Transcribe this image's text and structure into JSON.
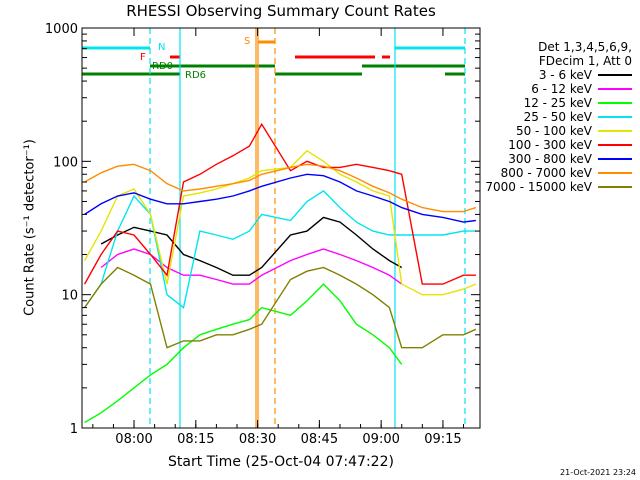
{
  "chart_data": {
    "type": "line",
    "title": "RHESSI Observing Summary Count Rates",
    "xlabel": "Start Time (25-Oct-04 07:47:22)",
    "ylabel": "Count Rate (s⁻¹ detector⁻¹)",
    "y_scale": "log",
    "ylim": [
      1,
      1000
    ],
    "xlim": [
      "07:47:22",
      "09:24:00"
    ],
    "x_ticks": [
      "08:00",
      "08:15",
      "08:30",
      "08:45",
      "09:00",
      "09:15"
    ],
    "y_ticks": [
      "1",
      "10",
      "100",
      "1000"
    ],
    "legend_header": [
      "Det 1,3,4,5,6,9,",
      "FDecim 1, Att 0"
    ],
    "legend_position": "right",
    "timestamp": "21-Oct-2021 23:24",
    "flag_labels": [
      {
        "text": "N",
        "color": "#00e5ee"
      },
      {
        "text": "F",
        "color": "#ff0000"
      },
      {
        "text": "RD0",
        "color": "#008000"
      },
      {
        "text": "RD6",
        "color": "#008000"
      },
      {
        "text": "S",
        "color": "#ff8c00"
      }
    ],
    "series": [
      {
        "name": "3 - 6 keV",
        "color": "#000000",
        "x": [
          "07:52",
          "07:56",
          "08:00",
          "08:04",
          "08:08",
          "08:12",
          "08:16",
          "08:20",
          "08:24",
          "08:28",
          "08:31",
          "08:38",
          "08:42",
          "08:46",
          "08:50",
          "08:54",
          "08:58",
          "09:02",
          "09:05"
        ],
        "y": [
          24,
          28,
          32,
          30,
          28,
          20,
          18,
          16,
          14,
          14,
          16,
          28,
          30,
          38,
          35,
          28,
          22,
          18,
          16
        ]
      },
      {
        "name": "6 - 12 keV",
        "color": "#ff00ff",
        "x": [
          "07:52",
          "07:56",
          "08:00",
          "08:04",
          "08:08",
          "08:12",
          "08:16",
          "08:20",
          "08:24",
          "08:28",
          "08:31",
          "08:38",
          "08:42",
          "08:46",
          "08:50",
          "08:54",
          "08:58",
          "09:02",
          "09:05"
        ],
        "y": [
          16,
          20,
          22,
          20,
          16,
          14,
          14,
          13,
          12,
          12,
          14,
          18,
          20,
          22,
          20,
          18,
          16,
          14,
          12
        ]
      },
      {
        "name": "12 - 25 keV",
        "color": "#00ff00",
        "x": [
          "07:48",
          "07:52",
          "07:56",
          "08:00",
          "08:04",
          "08:08",
          "08:12",
          "08:16",
          "08:20",
          "08:24",
          "08:28",
          "08:31",
          "08:38",
          "08:42",
          "08:46",
          "08:50",
          "08:54",
          "08:58",
          "09:02",
          "09:05"
        ],
        "y": [
          1.1,
          1.3,
          1.6,
          2,
          2.5,
          3,
          4,
          5,
          5.5,
          6,
          6.5,
          8,
          7,
          9,
          12,
          9,
          6,
          5,
          4,
          3
        ]
      },
      {
        "name": "25 - 50 keV",
        "color": "#00e5ee",
        "x": [
          "07:48",
          "07:52",
          "07:56",
          "08:00",
          "08:04",
          "08:08",
          "08:12",
          "08:16",
          "08:20",
          "08:24",
          "08:28",
          "08:31",
          "08:38",
          "08:42",
          "08:46",
          "08:50",
          "08:54",
          "08:58",
          "09:02",
          "09:05",
          "09:10",
          "09:15",
          "09:20",
          "09:23"
        ],
        "y": [
          8,
          12,
          30,
          55,
          40,
          10,
          8,
          30,
          28,
          26,
          30,
          40,
          36,
          50,
          60,
          45,
          35,
          30,
          28,
          28,
          28,
          28,
          30,
          30
        ]
      },
      {
        "name": "50 - 100 keV",
        "color": "#e5e500",
        "x": [
          "07:48",
          "07:52",
          "07:56",
          "08:00",
          "08:04",
          "08:08",
          "08:12",
          "08:16",
          "08:20",
          "08:24",
          "08:28",
          "08:31",
          "08:38",
          "08:42",
          "08:46",
          "08:50",
          "08:54",
          "08:58",
          "09:02",
          "09:05",
          "09:10",
          "09:15",
          "09:20",
          "09:23"
        ],
        "y": [
          18,
          30,
          55,
          62,
          40,
          12,
          55,
          58,
          62,
          68,
          75,
          85,
          90,
          120,
          100,
          80,
          70,
          60,
          55,
          12,
          10,
          10,
          11,
          12
        ]
      },
      {
        "name": "100 - 300 keV",
        "color": "#ff0000",
        "x": [
          "07:48",
          "07:52",
          "07:56",
          "08:00",
          "08:04",
          "08:08",
          "08:12",
          "08:16",
          "08:20",
          "08:24",
          "08:28",
          "08:31",
          "08:38",
          "08:42",
          "08:46",
          "08:50",
          "08:54",
          "08:58",
          "09:02",
          "09:05",
          "09:10",
          "09:15",
          "09:20",
          "09:23"
        ],
        "y": [
          12,
          20,
          30,
          28,
          20,
          14,
          70,
          80,
          95,
          110,
          130,
          190,
          85,
          100,
          90,
          90,
          95,
          90,
          85,
          80,
          12,
          12,
          14,
          14
        ]
      },
      {
        "name": "300 - 800 keV",
        "color": "#0000ff",
        "x": [
          "07:48",
          "07:52",
          "07:56",
          "08:00",
          "08:04",
          "08:08",
          "08:12",
          "08:16",
          "08:20",
          "08:24",
          "08:28",
          "08:31",
          "08:38",
          "08:42",
          "08:46",
          "08:50",
          "08:54",
          "08:58",
          "09:02",
          "09:05",
          "09:10",
          "09:15",
          "09:20",
          "09:23"
        ],
        "y": [
          40,
          48,
          55,
          58,
          52,
          48,
          48,
          50,
          52,
          55,
          60,
          65,
          75,
          80,
          78,
          70,
          60,
          55,
          50,
          45,
          40,
          38,
          35,
          36
        ]
      },
      {
        "name": "800 - 7000 keV",
        "color": "#ff8c00",
        "x": [
          "07:48",
          "07:52",
          "07:56",
          "08:00",
          "08:04",
          "08:08",
          "08:12",
          "08:16",
          "08:20",
          "08:24",
          "08:28",
          "08:31",
          "08:38",
          "08:42",
          "08:46",
          "08:50",
          "08:54",
          "08:58",
          "09:02",
          "09:05",
          "09:10",
          "09:15",
          "09:20",
          "09:23"
        ],
        "y": [
          70,
          82,
          92,
          95,
          85,
          68,
          60,
          62,
          65,
          68,
          72,
          80,
          90,
          95,
          92,
          85,
          75,
          65,
          58,
          52,
          45,
          42,
          42,
          45
        ]
      },
      {
        "name": "7000 - 15000 keV",
        "color": "#808000",
        "x": [
          "07:48",
          "07:52",
          "07:56",
          "08:00",
          "08:04",
          "08:08",
          "08:12",
          "08:16",
          "08:20",
          "08:24",
          "08:28",
          "08:31",
          "08:38",
          "08:42",
          "08:46",
          "08:50",
          "08:54",
          "08:58",
          "09:02",
          "09:05",
          "09:10",
          "09:15",
          "09:20",
          "09:23"
        ],
        "y": [
          8,
          12,
          16,
          14,
          12,
          4,
          4.5,
          4.5,
          5,
          5,
          5.5,
          6,
          13,
          15,
          16,
          14,
          12,
          10,
          8,
          4,
          4,
          5,
          5,
          5.5
        ]
      }
    ]
  }
}
